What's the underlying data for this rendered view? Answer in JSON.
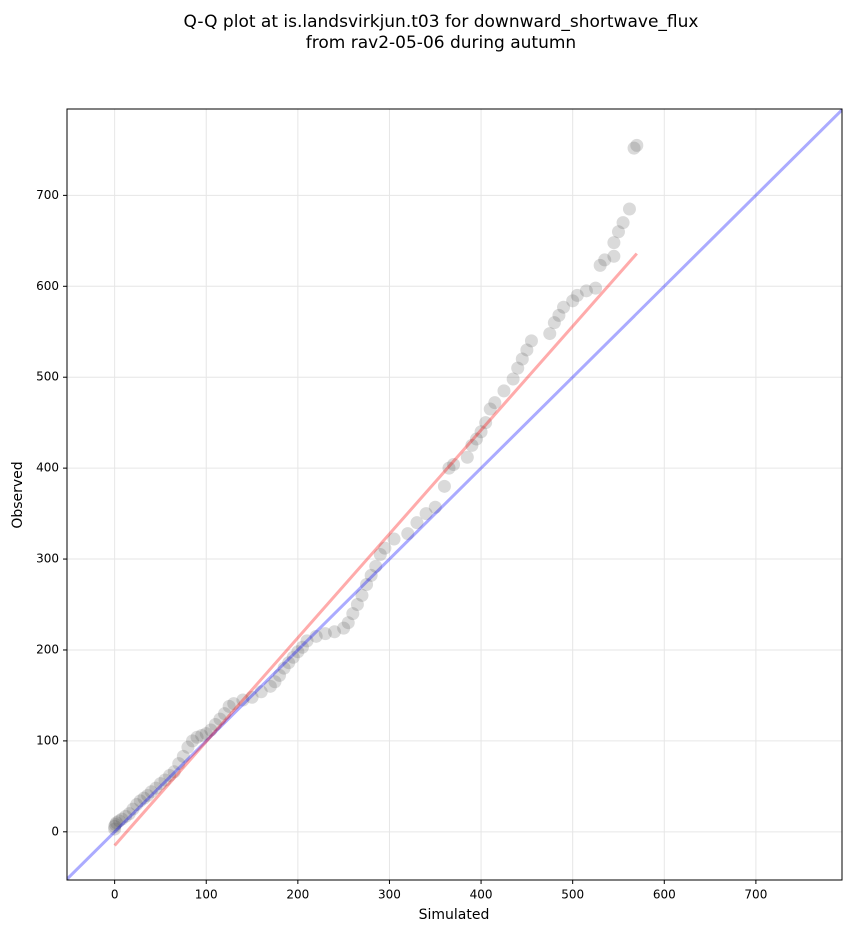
{
  "chart_data": {
    "type": "scatter",
    "title": [
      "Q-Q plot at is.landsvirkjun.t03 for downward_shortwave_flux",
      "from rav2-05-06 during autumn"
    ],
    "x_label": "Simulated",
    "y_label": "Observed",
    "xlim": [
      -52,
      794
    ],
    "ylim": [
      -53,
      795
    ],
    "xticks": [
      0,
      100,
      200,
      300,
      400,
      500,
      600,
      700
    ],
    "yticks": [
      0,
      100,
      200,
      300,
      400,
      500,
      600,
      700
    ],
    "grid": true,
    "color": "#555555",
    "identity_line": {
      "color": "#0000ff"
    },
    "fit_line": {
      "color": "#ff0000",
      "x": [
        0,
        570
      ],
      "y": [
        -15,
        636
      ]
    },
    "x": [
      0,
      0,
      1,
      2,
      5,
      8,
      12,
      16,
      20,
      24,
      28,
      32,
      36,
      40,
      45,
      50,
      55,
      60,
      65,
      70,
      75,
      80,
      85,
      90,
      95,
      100,
      105,
      110,
      115,
      120,
      125,
      130,
      140,
      150,
      160,
      170,
      175,
      180,
      185,
      190,
      195,
      200,
      205,
      210,
      220,
      230,
      240,
      250,
      255,
      260,
      265,
      270,
      275,
      280,
      285,
      290,
      295,
      305,
      320,
      330,
      340,
      350,
      360,
      365,
      370,
      385,
      390,
      395,
      400,
      405,
      410,
      415,
      425,
      435,
      440,
      445,
      450,
      455,
      475,
      480,
      485,
      490,
      500,
      505,
      515,
      525,
      530,
      535,
      545,
      545,
      550,
      555,
      562,
      567,
      570
    ],
    "y": [
      3,
      6,
      8,
      10,
      12,
      14,
      17,
      20,
      25,
      30,
      34,
      37,
      40,
      44,
      48,
      53,
      57,
      62,
      66,
      75,
      83,
      93,
      100,
      104,
      106,
      108,
      112,
      118,
      124,
      130,
      138,
      141,
      145,
      148,
      154,
      160,
      165,
      172,
      180,
      186,
      192,
      198,
      203,
      210,
      215,
      218,
      220,
      224,
      230,
      240,
      250,
      260,
      272,
      282,
      292,
      305,
      312,
      322,
      328,
      340,
      350,
      357,
      380,
      400,
      404,
      412,
      425,
      432,
      440,
      450,
      465,
      472,
      485,
      498,
      510,
      520,
      530,
      540,
      548,
      560,
      568,
      577,
      584,
      590,
      595,
      598,
      623,
      629,
      633,
      648,
      660,
      670,
      685,
      752,
      755
    ]
  }
}
